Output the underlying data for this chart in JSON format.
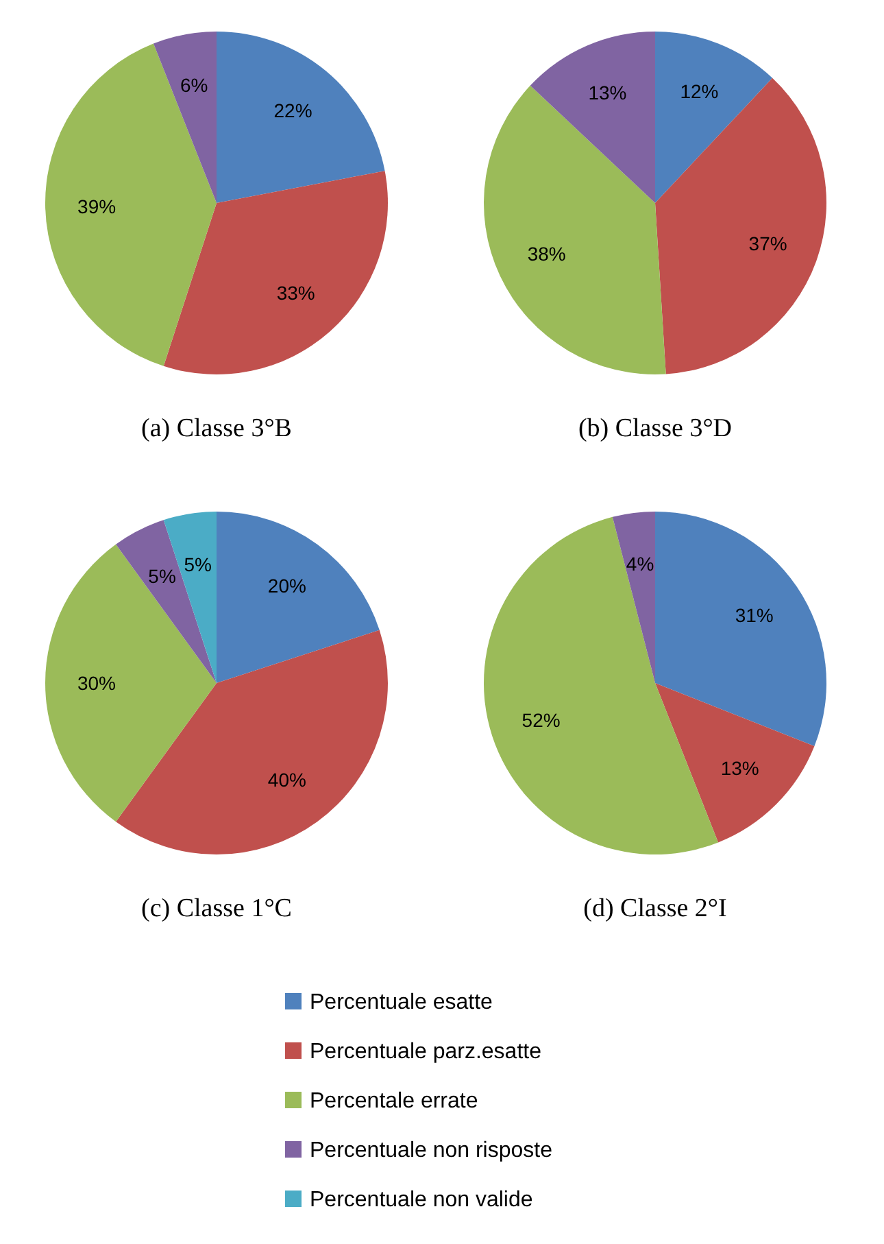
{
  "chart_data": [
    {
      "type": "pie",
      "title": "(a) Classe 3°B",
      "categories": [
        null,
        null,
        null,
        null
      ],
      "values": [
        22,
        33,
        39,
        6
      ],
      "value_labels": [
        "22%",
        "33%",
        "39%",
        "6%"
      ],
      "colors": [
        "#4f81bd",
        "#c0504d",
        "#9bbb59",
        "#8064a2"
      ]
    },
    {
      "type": "pie",
      "title": "(b) Classe 3°D",
      "categories": [
        null,
        null,
        null,
        null
      ],
      "values": [
        12,
        37,
        38,
        13
      ],
      "value_labels": [
        "12%",
        "37%",
        "38%",
        "13%"
      ],
      "colors": [
        "#4f81bd",
        "#c0504d",
        "#9bbb59",
        "#8064a2"
      ]
    },
    {
      "type": "pie",
      "title": "(c) Classe 1°C",
      "categories": [
        "Percentuale esatte",
        "Percentuale parz.esatte",
        "Percentale errate",
        "Percentuale non risposte",
        "Percentuale non valide"
      ],
      "values": [
        20,
        40,
        30,
        5,
        5
      ],
      "value_labels": [
        "20%",
        "40%",
        "30%",
        "5%",
        "5%"
      ],
      "colors": [
        "#4f81bd",
        "#c0504d",
        "#9bbb59",
        "#8064a2",
        "#4bacc6"
      ],
      "legend": "bottom"
    },
    {
      "type": "pie",
      "title": "(d) Classe 2°I",
      "categories": [
        null,
        null,
        null,
        null
      ],
      "values": [
        31,
        13,
        52,
        4
      ],
      "value_labels": [
        "31%",
        "13%",
        "52%",
        "4%"
      ],
      "colors": [
        "#4f81bd",
        "#c0504d",
        "#9bbb59",
        "#8064a2"
      ]
    }
  ]
}
